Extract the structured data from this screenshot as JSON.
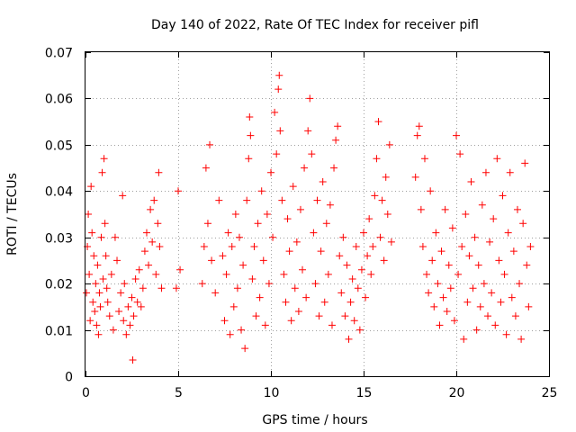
{
  "chart_data": {
    "type": "scatter",
    "title": "Day 140 of 2022, Rate Of TEC Index for receiver pifl",
    "xlabel": "GPS time / hours",
    "ylabel": "ROTI / TECUs",
    "xlim": [
      0,
      25
    ],
    "ylim": [
      0,
      0.07
    ],
    "xticks": [
      0,
      5,
      10,
      15,
      20,
      25
    ],
    "yticks": [
      0,
      0.01,
      0.02,
      0.03,
      0.04,
      0.05,
      0.06,
      0.07
    ],
    "xtick_labels": [
      "0",
      "5",
      "10",
      "15",
      "20",
      "25"
    ],
    "ytick_labels": [
      "0",
      "0.01",
      "0.02",
      "0.03",
      "0.04",
      "0.05",
      "0.06",
      "0.07"
    ],
    "grid": true,
    "marker": "+",
    "color": "#ff0000",
    "series": [
      {
        "name": "ROTI",
        "points": [
          [
            0.05,
            0.018
          ],
          [
            0.1,
            0.028
          ],
          [
            0.15,
            0.035
          ],
          [
            0.2,
            0.022
          ],
          [
            0.25,
            0.012
          ],
          [
            0.3,
            0.041
          ],
          [
            0.35,
            0.031
          ],
          [
            0.4,
            0.016
          ],
          [
            0.45,
            0.026
          ],
          [
            0.5,
            0.014
          ],
          [
            0.55,
            0.02
          ],
          [
            0.6,
            0.011
          ],
          [
            0.65,
            0.024
          ],
          [
            0.7,
            0.009
          ],
          [
            0.75,
            0.018
          ],
          [
            0.8,
            0.015
          ],
          [
            0.85,
            0.03
          ],
          [
            0.9,
            0.044
          ],
          [
            0.95,
            0.021
          ],
          [
            1.0,
            0.047
          ],
          [
            1.05,
            0.033
          ],
          [
            1.1,
            0.026
          ],
          [
            1.15,
            0.019
          ],
          [
            1.2,
            0.016
          ],
          [
            1.3,
            0.013
          ],
          [
            1.4,
            0.022
          ],
          [
            1.5,
            0.01
          ],
          [
            1.6,
            0.03
          ],
          [
            1.7,
            0.025
          ],
          [
            1.8,
            0.014
          ],
          [
            1.9,
            0.018
          ],
          [
            2.0,
            0.039
          ],
          [
            2.05,
            0.012
          ],
          [
            2.1,
            0.02
          ],
          [
            2.2,
            0.009
          ],
          [
            2.3,
            0.015
          ],
          [
            2.4,
            0.011
          ],
          [
            2.5,
            0.017
          ],
          [
            2.55,
            0.0035
          ],
          [
            2.6,
            0.013
          ],
          [
            2.7,
            0.021
          ],
          [
            2.8,
            0.016
          ],
          [
            2.9,
            0.023
          ],
          [
            3.0,
            0.015
          ],
          [
            3.1,
            0.019
          ],
          [
            3.2,
            0.027
          ],
          [
            3.3,
            0.031
          ],
          [
            3.4,
            0.024
          ],
          [
            3.5,
            0.036
          ],
          [
            3.6,
            0.029
          ],
          [
            3.7,
            0.038
          ],
          [
            3.8,
            0.022
          ],
          [
            3.9,
            0.033
          ],
          [
            3.95,
            0.044
          ],
          [
            4.0,
            0.028
          ],
          [
            4.1,
            0.019
          ],
          [
            4.9,
            0.019
          ],
          [
            5.0,
            0.04
          ],
          [
            5.1,
            0.023
          ],
          [
            6.3,
            0.02
          ],
          [
            6.4,
            0.028
          ],
          [
            6.5,
            0.045
          ],
          [
            6.6,
            0.033
          ],
          [
            6.7,
            0.05
          ],
          [
            6.8,
            0.025
          ],
          [
            7.0,
            0.018
          ],
          [
            7.2,
            0.038
          ],
          [
            7.4,
            0.026
          ],
          [
            7.5,
            0.012
          ],
          [
            7.6,
            0.022
          ],
          [
            7.7,
            0.031
          ],
          [
            7.8,
            0.009
          ],
          [
            7.9,
            0.028
          ],
          [
            8.0,
            0.015
          ],
          [
            8.1,
            0.035
          ],
          [
            8.2,
            0.019
          ],
          [
            8.3,
            0.03
          ],
          [
            8.4,
            0.01
          ],
          [
            8.5,
            0.024
          ],
          [
            8.6,
            0.006
          ],
          [
            8.7,
            0.038
          ],
          [
            8.8,
            0.047
          ],
          [
            8.85,
            0.056
          ],
          [
            8.9,
            0.052
          ],
          [
            9.0,
            0.021
          ],
          [
            9.1,
            0.028
          ],
          [
            9.2,
            0.013
          ],
          [
            9.3,
            0.033
          ],
          [
            9.4,
            0.017
          ],
          [
            9.5,
            0.04
          ],
          [
            9.6,
            0.025
          ],
          [
            9.7,
            0.011
          ],
          [
            9.8,
            0.035
          ],
          [
            9.9,
            0.02
          ],
          [
            10.0,
            0.044
          ],
          [
            10.1,
            0.03
          ],
          [
            10.2,
            0.057
          ],
          [
            10.3,
            0.048
          ],
          [
            10.4,
            0.062
          ],
          [
            10.45,
            0.065
          ],
          [
            10.5,
            0.053
          ],
          [
            10.6,
            0.038
          ],
          [
            10.7,
            0.022
          ],
          [
            10.8,
            0.016
          ],
          [
            10.9,
            0.034
          ],
          [
            11.0,
            0.027
          ],
          [
            11.1,
            0.012
          ],
          [
            11.2,
            0.041
          ],
          [
            11.3,
            0.019
          ],
          [
            11.4,
            0.029
          ],
          [
            11.5,
            0.014
          ],
          [
            11.6,
            0.036
          ],
          [
            11.7,
            0.023
          ],
          [
            11.8,
            0.045
          ],
          [
            11.9,
            0.017
          ],
          [
            12.0,
            0.053
          ],
          [
            12.1,
            0.06
          ],
          [
            12.2,
            0.048
          ],
          [
            12.3,
            0.031
          ],
          [
            12.4,
            0.02
          ],
          [
            12.5,
            0.038
          ],
          [
            12.6,
            0.013
          ],
          [
            12.7,
            0.027
          ],
          [
            12.8,
            0.042
          ],
          [
            12.9,
            0.016
          ],
          [
            13.0,
            0.033
          ],
          [
            13.1,
            0.022
          ],
          [
            13.2,
            0.037
          ],
          [
            13.3,
            0.011
          ],
          [
            13.4,
            0.045
          ],
          [
            13.5,
            0.051
          ],
          [
            13.6,
            0.054
          ],
          [
            13.7,
            0.026
          ],
          [
            13.8,
            0.018
          ],
          [
            13.9,
            0.03
          ],
          [
            14.0,
            0.013
          ],
          [
            14.1,
            0.024
          ],
          [
            14.2,
            0.008
          ],
          [
            14.3,
            0.016
          ],
          [
            14.4,
            0.021
          ],
          [
            14.5,
            0.012
          ],
          [
            14.6,
            0.028
          ],
          [
            14.7,
            0.019
          ],
          [
            14.8,
            0.01
          ],
          [
            14.9,
            0.023
          ],
          [
            15.0,
            0.031
          ],
          [
            15.1,
            0.017
          ],
          [
            15.2,
            0.026
          ],
          [
            15.3,
            0.034
          ],
          [
            15.4,
            0.022
          ],
          [
            15.5,
            0.028
          ],
          [
            15.6,
            0.039
          ],
          [
            15.7,
            0.047
          ],
          [
            15.8,
            0.055
          ],
          [
            15.9,
            0.03
          ],
          [
            16.0,
            0.038
          ],
          [
            16.1,
            0.025
          ],
          [
            16.2,
            0.043
          ],
          [
            16.3,
            0.035
          ],
          [
            16.4,
            0.05
          ],
          [
            16.5,
            0.029
          ],
          [
            17.8,
            0.043
          ],
          [
            17.9,
            0.052
          ],
          [
            18.0,
            0.054
          ],
          [
            18.1,
            0.036
          ],
          [
            18.2,
            0.028
          ],
          [
            18.3,
            0.047
          ],
          [
            18.4,
            0.022
          ],
          [
            18.5,
            0.018
          ],
          [
            18.6,
            0.04
          ],
          [
            18.7,
            0.025
          ],
          [
            18.8,
            0.015
          ],
          [
            18.9,
            0.031
          ],
          [
            19.0,
            0.02
          ],
          [
            19.1,
            0.011
          ],
          [
            19.2,
            0.027
          ],
          [
            19.3,
            0.017
          ],
          [
            19.4,
            0.036
          ],
          [
            19.5,
            0.014
          ],
          [
            19.6,
            0.024
          ],
          [
            19.7,
            0.019
          ],
          [
            19.8,
            0.032
          ],
          [
            19.9,
            0.012
          ],
          [
            20.0,
            0.052
          ],
          [
            20.1,
            0.022
          ],
          [
            20.2,
            0.048
          ],
          [
            20.3,
            0.028
          ],
          [
            20.4,
            0.008
          ],
          [
            20.5,
            0.035
          ],
          [
            20.6,
            0.016
          ],
          [
            20.7,
            0.026
          ],
          [
            20.8,
            0.042
          ],
          [
            20.9,
            0.019
          ],
          [
            21.0,
            0.03
          ],
          [
            21.1,
            0.01
          ],
          [
            21.2,
            0.024
          ],
          [
            21.3,
            0.015
          ],
          [
            21.4,
            0.037
          ],
          [
            21.5,
            0.02
          ],
          [
            21.6,
            0.044
          ],
          [
            21.7,
            0.013
          ],
          [
            21.8,
            0.029
          ],
          [
            21.9,
            0.018
          ],
          [
            22.0,
            0.034
          ],
          [
            22.1,
            0.011
          ],
          [
            22.2,
            0.047
          ],
          [
            22.3,
            0.025
          ],
          [
            22.4,
            0.016
          ],
          [
            22.5,
            0.039
          ],
          [
            22.6,
            0.022
          ],
          [
            22.7,
            0.009
          ],
          [
            22.8,
            0.031
          ],
          [
            22.9,
            0.044
          ],
          [
            23.0,
            0.017
          ],
          [
            23.1,
            0.027
          ],
          [
            23.2,
            0.013
          ],
          [
            23.3,
            0.036
          ],
          [
            23.4,
            0.02
          ],
          [
            23.5,
            0.008
          ],
          [
            23.6,
            0.033
          ],
          [
            23.7,
            0.046
          ],
          [
            23.8,
            0.024
          ],
          [
            23.9,
            0.015
          ],
          [
            24.0,
            0.028
          ]
        ]
      }
    ]
  }
}
